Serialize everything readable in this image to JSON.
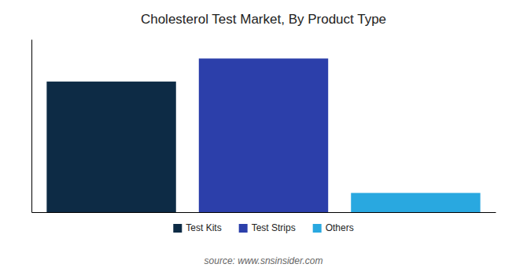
{
  "chart_data": {
    "type": "bar",
    "title": "Cholesterol Test Market, By Product Type",
    "categories": [
      "Test Kits",
      "Test Strips",
      "Others"
    ],
    "values": [
      68,
      80,
      10
    ],
    "colors": [
      "#0d2b45",
      "#2c3faa",
      "#29a8e0"
    ],
    "ylim": [
      0,
      90
    ],
    "tick_labels": false,
    "grid": false,
    "legend": "bottom",
    "annotations": [
      "source: www.snsinsider.com"
    ]
  }
}
